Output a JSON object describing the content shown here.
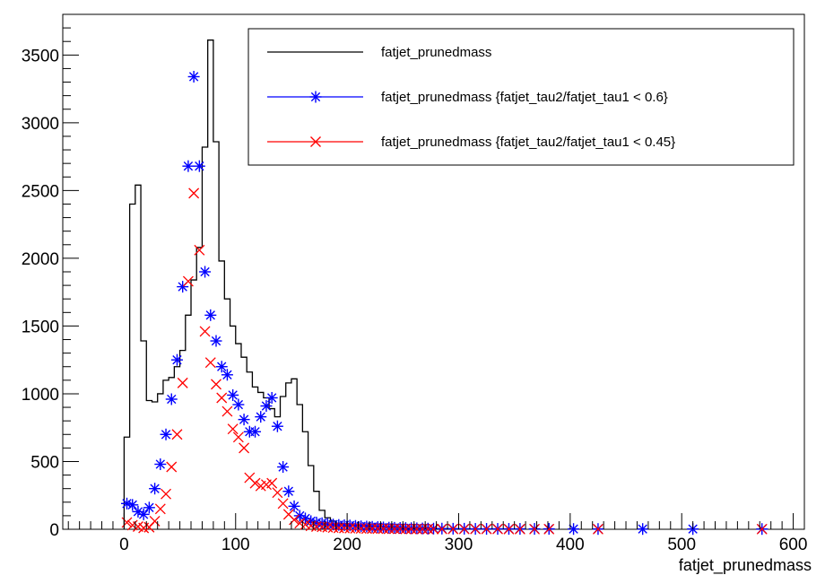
{
  "chart_data": {
    "type": "line",
    "xlabel": "fatjet_prunedmass",
    "ylabel": "",
    "xlim": [
      -55,
      610
    ],
    "ylim": [
      0,
      3800
    ],
    "x_ticks": [
      0,
      100,
      200,
      300,
      400,
      500,
      600
    ],
    "y_ticks": [
      0,
      500,
      1000,
      1500,
      2000,
      2500,
      3000,
      3500
    ],
    "grid": false,
    "legend_position": "top-right",
    "series": [
      {
        "name": "fatjet_prunedmass",
        "style": "step",
        "color": "#000000",
        "bin_width": 5,
        "bin_start": 0,
        "values": [
          680,
          2400,
          2540,
          1390,
          950,
          940,
          1000,
          1100,
          1120,
          1200,
          1320,
          1580,
          1840,
          2080,
          2820,
          3610,
          2860,
          1980,
          1700,
          1500,
          1370,
          1270,
          1160,
          1050,
          1010,
          970,
          890,
          830,
          980,
          1080,
          1110,
          920,
          720,
          470,
          280,
          140,
          85,
          60,
          45,
          40,
          35,
          30,
          28,
          25,
          20,
          18,
          15,
          13,
          12,
          10,
          9,
          8,
          7,
          6,
          6,
          5,
          5,
          4,
          4,
          4
        ]
      },
      {
        "name": "fatjet_prunedmass {fatjet_tau2/fatjet_tau1 < 0.6}",
        "style": "star",
        "color": "#0000ff",
        "x": [
          2.5,
          7.5,
          12.5,
          17.5,
          22.5,
          27.5,
          32.5,
          37.5,
          42.5,
          47.5,
          52.5,
          57.5,
          62.5,
          67.5,
          72.5,
          77.5,
          82.5,
          87.5,
          92.5,
          97.5,
          102.5,
          107.5,
          112.5,
          117.5,
          122.5,
          127.5,
          132.5,
          137.5,
          142.5,
          147.5,
          152.5,
          157.5,
          162.5,
          167.5,
          172.5,
          177.5,
          182.5,
          187.5,
          192.5,
          197.5,
          202.5,
          207.5,
          212.5,
          217.5,
          222.5,
          227.5,
          232.5,
          237.5,
          242.5,
          247.5,
          252.5,
          257.5,
          262.5,
          267.5,
          272.5,
          277.5,
          285,
          295,
          305,
          315,
          325,
          335,
          345,
          355,
          368,
          381,
          403,
          425,
          465,
          510,
          572
        ],
        "values": [
          190,
          180,
          130,
          110,
          160,
          300,
          480,
          700,
          960,
          1250,
          1790,
          2680,
          3340,
          2680,
          1900,
          1580,
          1390,
          1200,
          1140,
          990,
          920,
          810,
          720,
          720,
          830,
          910,
          970,
          760,
          460,
          280,
          170,
          100,
          80,
          60,
          50,
          45,
          40,
          35,
          32,
          30,
          28,
          25,
          22,
          20,
          18,
          16,
          14,
          12,
          11,
          10,
          9,
          8,
          7,
          6,
          5,
          5,
          5,
          4,
          4,
          3,
          3,
          3,
          3,
          3,
          3,
          3,
          2,
          2,
          2,
          2,
          2
        ]
      },
      {
        "name": "fatjet_prunedmass {fatjet_tau2/fatjet_tau1 < 0.45}",
        "style": "cross",
        "color": "#ff0000",
        "x": [
          2.5,
          7.5,
          12.5,
          17.5,
          22.5,
          27.5,
          32.5,
          37.5,
          42.5,
          47.5,
          52.5,
          57.5,
          62.5,
          67.5,
          72.5,
          77.5,
          82.5,
          87.5,
          92.5,
          97.5,
          102.5,
          107.5,
          112.5,
          117.5,
          122.5,
          127.5,
          132.5,
          137.5,
          142.5,
          147.5,
          152.5,
          157.5,
          162.5,
          167.5,
          172.5,
          177.5,
          182.5,
          187.5,
          192.5,
          197.5,
          202.5,
          207.5,
          212.5,
          217.5,
          222.5,
          227.5,
          232.5,
          237.5,
          242.5,
          247.5,
          252.5,
          257.5,
          262.5,
          267.5,
          272.5,
          277.5,
          285,
          295,
          305,
          315,
          325,
          335,
          345,
          355,
          368,
          381,
          425,
          572
        ],
        "values": [
          50,
          30,
          20,
          10,
          15,
          60,
          150,
          260,
          460,
          700,
          1080,
          1830,
          2480,
          2060,
          1460,
          1230,
          1070,
          970,
          870,
          740,
          680,
          600,
          380,
          340,
          320,
          330,
          340,
          270,
          190,
          110,
          70,
          45,
          35,
          25,
          20,
          18,
          15,
          12,
          10,
          9,
          8,
          7,
          6,
          5,
          5,
          4,
          4,
          3,
          3,
          3,
          2,
          2,
          2,
          2,
          2,
          2,
          2,
          2,
          2,
          2,
          2,
          2,
          1,
          1,
          1,
          1,
          1,
          1
        ]
      }
    ]
  }
}
